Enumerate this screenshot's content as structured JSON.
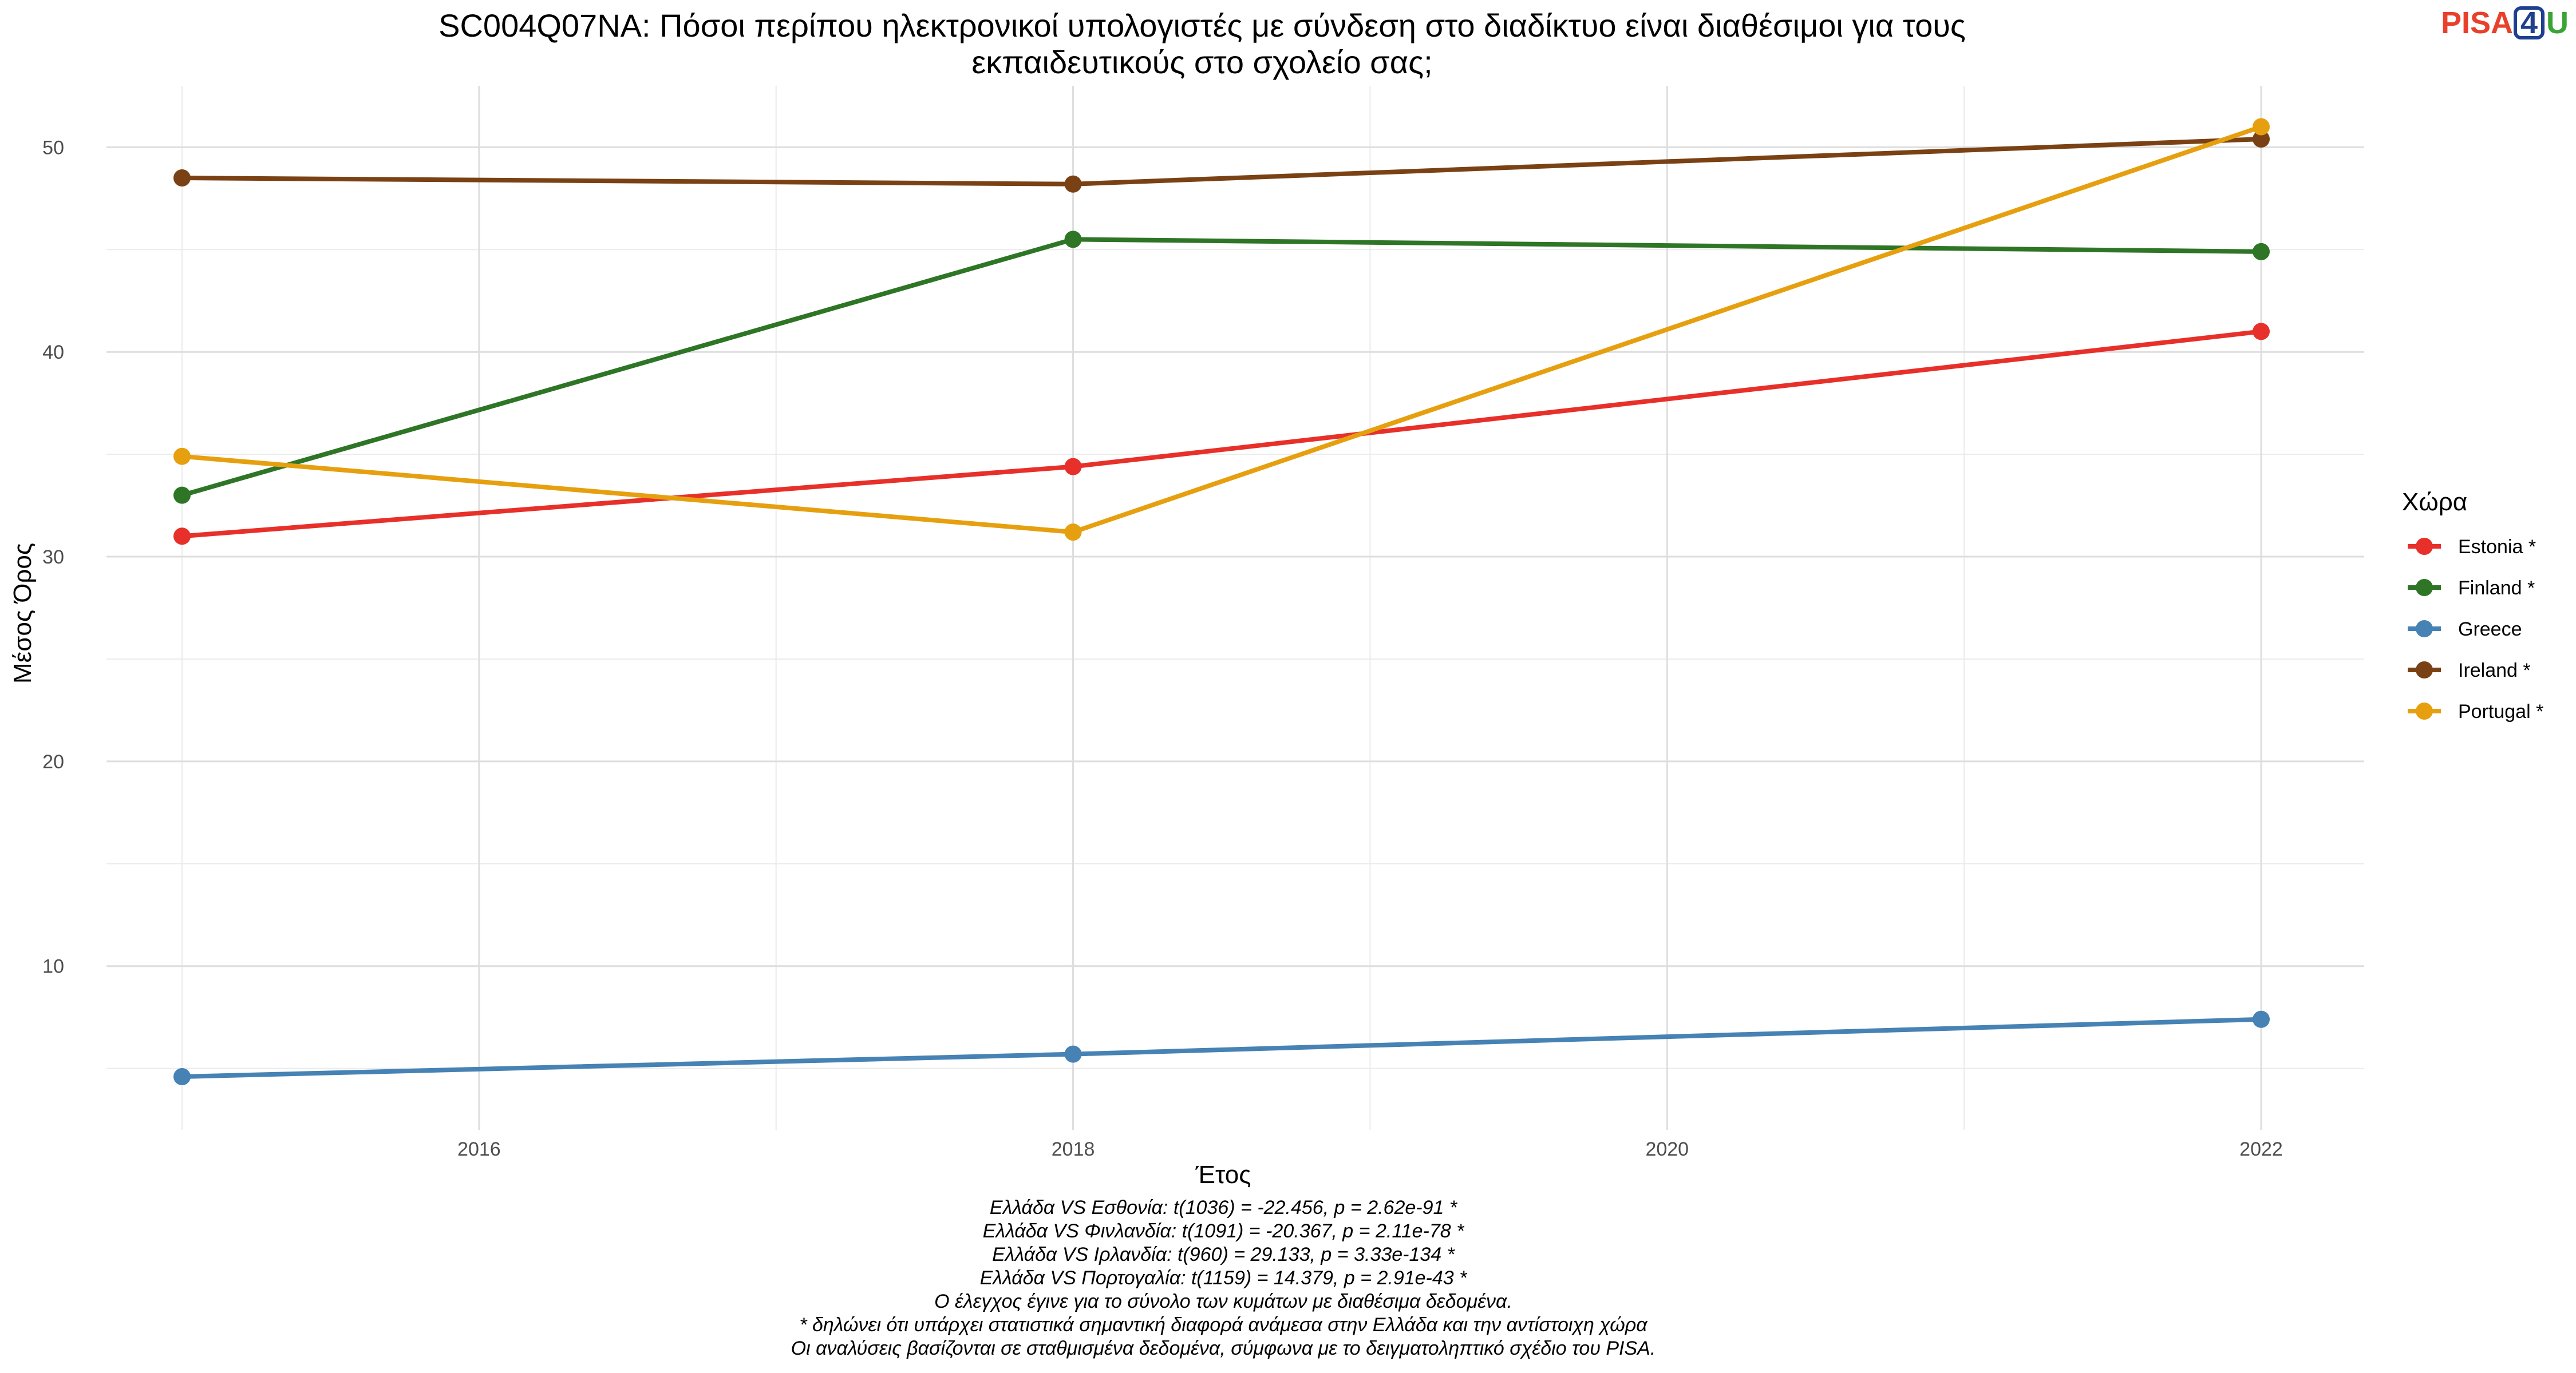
{
  "chart_data": {
    "type": "line",
    "title_lines": [
      "SC004Q07NA: Πόσοι περίπου ηλεκτρονικοί υπολογιστές με σύνδεση στο διαδίκτυο είναι διαθέσιμοι για τους",
      "εκπαιδευτικούς στο σχολείο σας;"
    ],
    "xlabel": "Έτος",
    "ylabel": "Μέσος Όρος",
    "xlim": [
      2015,
      2022
    ],
    "ylim": [
      2,
      53
    ],
    "x_ticks": [
      2016,
      2018,
      2020,
      2022
    ],
    "y_ticks": [
      10,
      20,
      30,
      40,
      50
    ],
    "grid": true,
    "legend_title": "Χώρα",
    "legend_position": "right",
    "x": [
      2015,
      2018,
      2022
    ],
    "series": [
      {
        "name": "Estonia *",
        "color": "#e8302a",
        "values": [
          31.0,
          34.4,
          41.0
        ]
      },
      {
        "name": "Finland *",
        "color": "#2e7526",
        "values": [
          33.0,
          45.5,
          44.9
        ]
      },
      {
        "name": "Greece",
        "color": "#4682b4",
        "values": [
          4.6,
          5.7,
          7.4
        ]
      },
      {
        "name": "Ireland *",
        "color": "#7a4214",
        "values": [
          48.5,
          48.2,
          50.4
        ]
      },
      {
        "name": "Portugal *",
        "color": "#e6a00f",
        "values": [
          34.9,
          31.2,
          51.0
        ]
      }
    ],
    "caption_lines": [
      "Ελλάδα VS Εσθονία: t(1036) = -22.456, p = 2.62e-91 *",
      "Ελλάδα VS Φινλανδία: t(1091) = -20.367, p = 2.11e-78 *",
      "Ελλάδα VS Ιρλανδία: t(960) = 29.133, p = 3.33e-134 *",
      "Ελλάδα VS Πορτογαλία: t(1159) = 14.379, p = 2.91e-43 *",
      "Ο έλεγχος έγινε για το σύνολο των κυμάτων με διαθέσιμα δεδομένα.",
      "* δηλώνει ότι υπάρχει στατιστικά σημαντική διαφορά ανάμεσα στην Ελλάδα και την αντίστοιχη χώρα",
      "Οι αναλύσεις βασίζονται σε σταθμισμένα δεδομένα, σύμφωνα με το δειγματοληπτικό σχέδιο του PISA."
    ]
  },
  "logo": {
    "text": "PISA",
    "number": "4",
    "suffix": "U",
    "colors": {
      "text": "#e8402a",
      "number": "#1f3f8f",
      "suffix": "#3aa335"
    }
  }
}
